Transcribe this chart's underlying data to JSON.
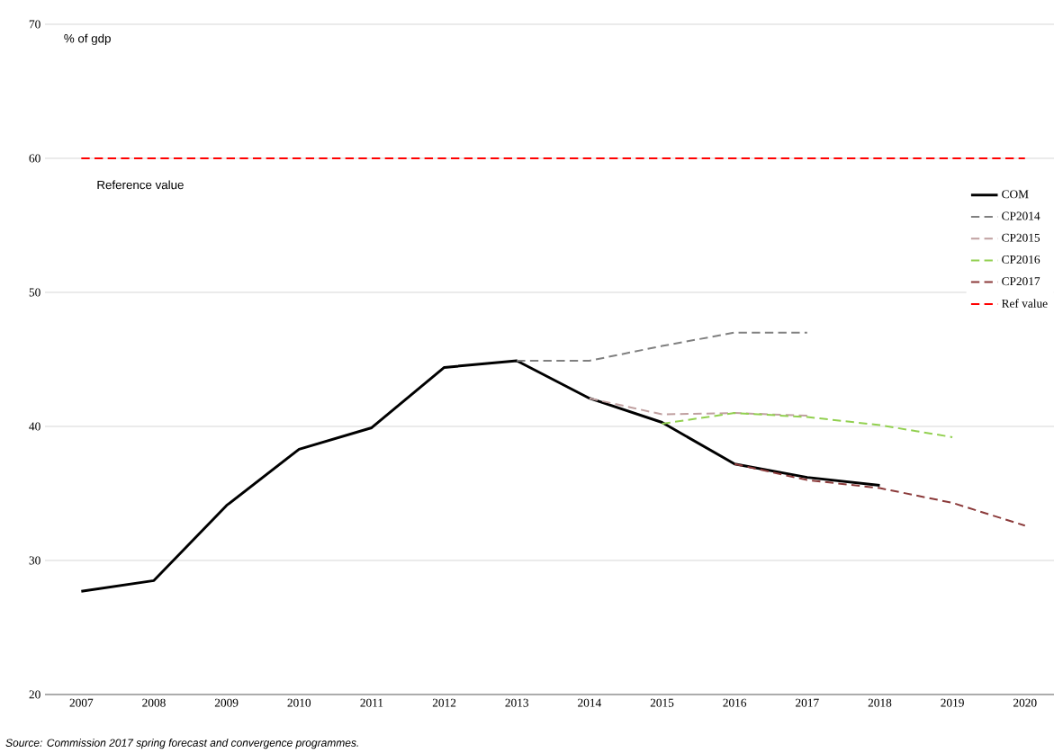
{
  "chart_data": {
    "type": "line",
    "ylabel": "% of gdp",
    "categories": [
      "2007",
      "2008",
      "2009",
      "2010",
      "2011",
      "2012",
      "2013",
      "2014",
      "2015",
      "2016",
      "2017",
      "2018",
      "2019",
      "2020"
    ],
    "series": [
      {
        "name": "COM",
        "color": "#000000",
        "line_style": "solid",
        "values": [
          27.7,
          28.5,
          34.1,
          38.3,
          39.9,
          44.4,
          44.9,
          42.1,
          40.3,
          37.2,
          36.2,
          35.6,
          null,
          null
        ]
      },
      {
        "name": "CP2014",
        "color": "#808080",
        "line_style": "dashed",
        "values": [
          null,
          null,
          null,
          null,
          null,
          null,
          44.9,
          44.9,
          46.0,
          47.0,
          47.0,
          null,
          null,
          null
        ]
      },
      {
        "name": "CP2015",
        "color": "#c0a0a0",
        "line_style": "dashed",
        "values": [
          null,
          null,
          null,
          null,
          null,
          null,
          null,
          42.1,
          40.9,
          41.0,
          40.8,
          null,
          null,
          null
        ]
      },
      {
        "name": "CP2016",
        "color": "#92d050",
        "line_style": "dashed",
        "values": [
          null,
          null,
          null,
          null,
          null,
          null,
          null,
          null,
          40.2,
          41.0,
          40.7,
          40.1,
          39.2,
          null
        ]
      },
      {
        "name": "CP2017",
        "color": "#8b3a3a",
        "line_style": "dashed",
        "values": [
          null,
          null,
          null,
          null,
          null,
          null,
          null,
          null,
          null,
          37.2,
          36.0,
          35.4,
          34.3,
          32.6
        ]
      },
      {
        "name": "Ref value",
        "color": "#ff0000",
        "line_style": "dashed",
        "values": [
          60,
          60,
          60,
          60,
          60,
          60,
          60,
          60,
          60,
          60,
          60,
          60,
          60,
          60
        ]
      }
    ],
    "ylim": [
      20,
      70
    ],
    "yticks": [
      20,
      30,
      40,
      50,
      60,
      70
    ],
    "grid": "y",
    "legend": "right",
    "annotations": [
      "Reference value",
      "Source: Commission 2017 spring forecast and convergence programmes."
    ]
  }
}
